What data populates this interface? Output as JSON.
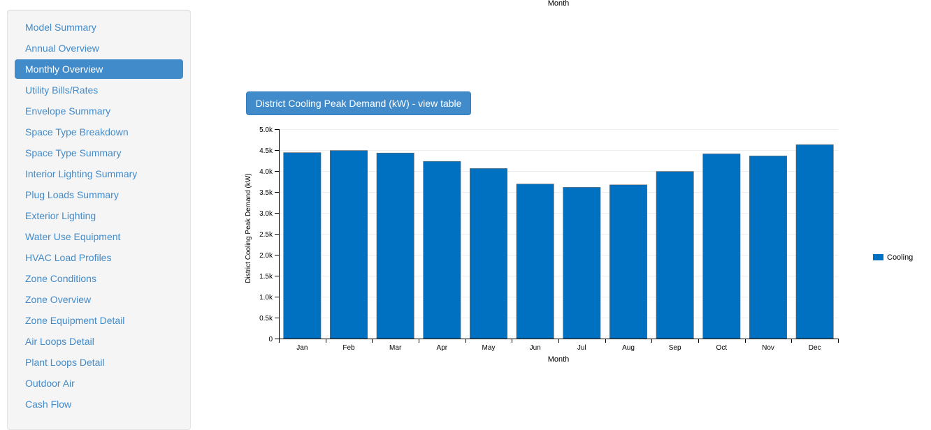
{
  "sidebar": {
    "items": [
      {
        "label": "Model Summary",
        "active": false
      },
      {
        "label": "Annual Overview",
        "active": false
      },
      {
        "label": "Monthly Overview",
        "active": true
      },
      {
        "label": "Utility Bills/Rates",
        "active": false
      },
      {
        "label": "Envelope Summary",
        "active": false
      },
      {
        "label": "Space Type Breakdown",
        "active": false
      },
      {
        "label": "Space Type Summary",
        "active": false
      },
      {
        "label": "Interior Lighting Summary",
        "active": false
      },
      {
        "label": "Plug Loads Summary",
        "active": false
      },
      {
        "label": "Exterior Lighting",
        "active": false
      },
      {
        "label": "Water Use Equipment",
        "active": false
      },
      {
        "label": "HVAC Load Profiles",
        "active": false
      },
      {
        "label": "Zone Conditions",
        "active": false
      },
      {
        "label": "Zone Overview",
        "active": false
      },
      {
        "label": "Zone Equipment Detail",
        "active": false
      },
      {
        "label": "Air Loops Detail",
        "active": false
      },
      {
        "label": "Plant Loops Detail",
        "active": false
      },
      {
        "label": "Outdoor Air",
        "active": false
      },
      {
        "label": "Cash Flow",
        "active": false
      }
    ]
  },
  "previous_chart": {
    "xlabel": "Month"
  },
  "chart_button": {
    "label": "District Cooling Peak Demand (kW) - view table"
  },
  "chart_data": {
    "type": "bar",
    "categories": [
      "Jan",
      "Feb",
      "Mar",
      "Apr",
      "May",
      "Jun",
      "Jul",
      "Aug",
      "Sep",
      "Oct",
      "Nov",
      "Dec"
    ],
    "series": [
      {
        "name": "Cooling",
        "values": [
          4440,
          4490,
          4430,
          4230,
          4060,
          3690,
          3610,
          3670,
          3990,
          4410,
          4360,
          4630
        ],
        "color": "#0070c0"
      }
    ],
    "ytick_labels": [
      "0",
      "0.5k",
      "1.0k",
      "1.5k",
      "2.0k",
      "2.5k",
      "3.0k",
      "3.5k",
      "4.0k",
      "4.5k",
      "5.0k"
    ],
    "ylim": [
      0,
      5000
    ],
    "xlabel": "Month",
    "ylabel": "District Cooling Peak Demand (kW)",
    "grid": true,
    "legend": "right"
  }
}
